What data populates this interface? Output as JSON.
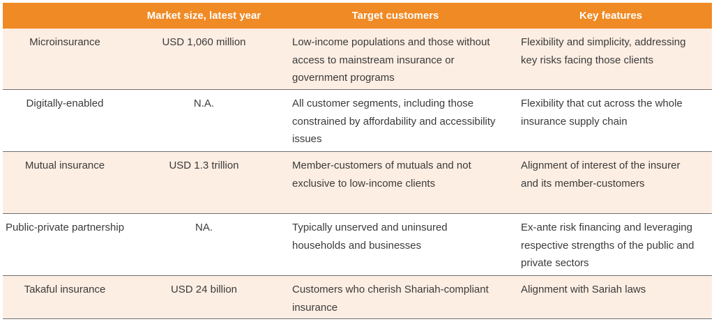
{
  "table": {
    "headers": [
      "",
      "Market size, latest year",
      "Target customers",
      "Key features"
    ],
    "rows": [
      {
        "type": "Microinsurance",
        "market_size": "USD 1,060 million",
        "target_customers": "Low-income populations and those without access to mainstream insurance or government programs",
        "key_features": "Flexibility and simplicity, addressing key risks facing those clients"
      },
      {
        "type": "Digitally-enabled",
        "market_size": "N.A.",
        "target_customers": "All customer segments, including those constrained by affordability and accessibility issues",
        "key_features": "Flexibility that cut across the whole insurance supply chain"
      },
      {
        "type": "Mutual insurance",
        "market_size": "USD 1.3 trillion",
        "target_customers": "Member-customers of mutuals and not exclusive to low-income clients",
        "key_features": "Alignment of interest of the insurer and its member-customers"
      },
      {
        "type": "Public-private partnership",
        "market_size": "NA.",
        "target_customers": "Typically unserved and uninsured households and businesses",
        "key_features": "Ex-ante risk financing and leveraging respective strengths of the public and private sectors"
      },
      {
        "type": "Takaful insurance",
        "market_size": "USD 24 billion",
        "target_customers": "Customers who cherish Shariah-compliant insurance",
        "key_features": "Alignment with Sariah laws"
      }
    ]
  },
  "colors": {
    "header_bg": "#f08a24",
    "shaded_row_bg": "#fdeee3",
    "text": "#3a3a3a"
  }
}
